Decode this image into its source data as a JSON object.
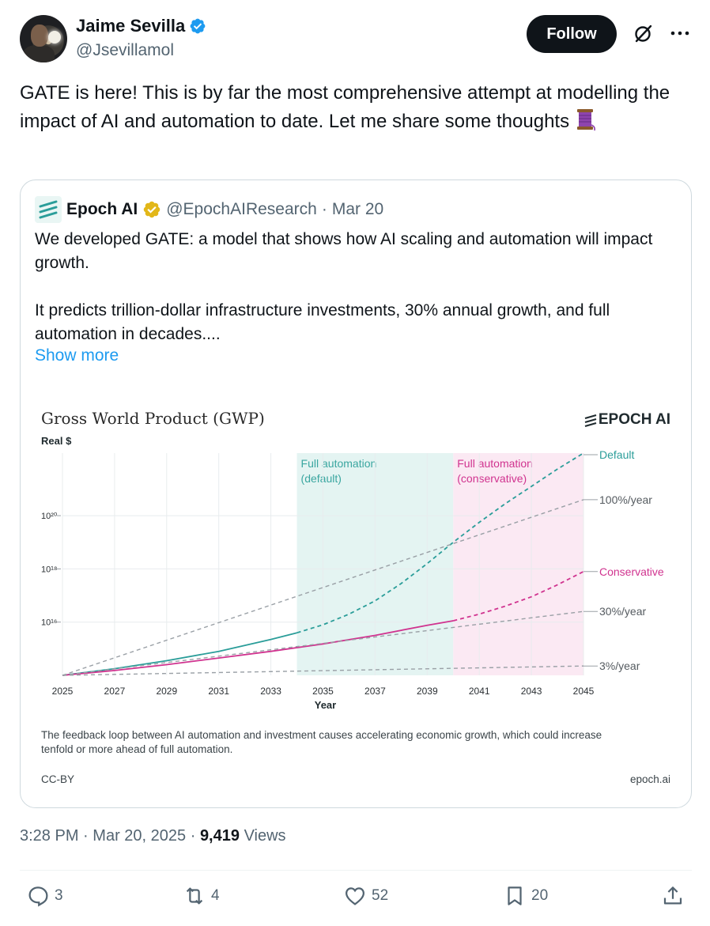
{
  "author": {
    "name": "Jaime Sevilla",
    "handle": "@Jsevillamol"
  },
  "follow_label": "Follow",
  "tweet_text": "GATE is here! This is by far the most comprehensive attempt at modelling the impact of AI and automation to date. Let me share some thoughts",
  "quoted": {
    "name": "Epoch AI",
    "handle": "@EpochAIResearch",
    "separator": "·",
    "date": "Mar 20",
    "paragraph1": "We developed GATE: a model that shows how AI scaling and automation will impact growth.",
    "paragraph2": "It predicts trillion-dollar infrastructure investments, 30% annual growth, and full automation in decades....",
    "show_more": "Show more"
  },
  "chart_data": {
    "type": "line",
    "title": "Gross World Product (GWP)",
    "brand": "EPOCH AI",
    "ylabel": "Real $",
    "xlabel": "Year",
    "x_ticks": [
      "2025",
      "2027",
      "2029",
      "2031",
      "2033",
      "2035",
      "2037",
      "2039",
      "2041",
      "2043",
      "2045"
    ],
    "y_scale": "log",
    "y_ticks": [
      "10²⁰",
      "10¹⁸",
      "10¹⁶"
    ],
    "regions": [
      {
        "label_line1": "Full automation",
        "label_line2": "(default)",
        "x_start": 2034,
        "x_end": 2040,
        "color": "#e4f4f2"
      },
      {
        "label_line1": "Full automation",
        "label_line2": "(conservative)",
        "x_start": 2040,
        "x_end": 2045,
        "color": "#fbe9f3"
      }
    ],
    "series": [
      {
        "name": "Default",
        "color": "#2a9d99",
        "points": [
          [
            2025,
            14.0
          ],
          [
            2027,
            14.25
          ],
          [
            2029,
            14.55
          ],
          [
            2031,
            14.9
          ],
          [
            2033,
            15.35
          ],
          [
            2034,
            15.6
          ],
          [
            2035,
            15.9
          ],
          [
            2036,
            16.3
          ],
          [
            2037,
            16.8
          ],
          [
            2038,
            17.45
          ],
          [
            2039,
            18.2
          ],
          [
            2040,
            19.0
          ],
          [
            2041,
            19.75
          ],
          [
            2042,
            20.45
          ],
          [
            2043,
            21.1
          ],
          [
            2044,
            21.75
          ],
          [
            2045,
            22.35
          ]
        ]
      },
      {
        "name": "Conservative",
        "color": "#d0338f",
        "points": [
          [
            2025,
            14.0
          ],
          [
            2027,
            14.18
          ],
          [
            2029,
            14.4
          ],
          [
            2031,
            14.65
          ],
          [
            2033,
            14.9
          ],
          [
            2035,
            15.18
          ],
          [
            2037,
            15.5
          ],
          [
            2039,
            15.88
          ],
          [
            2040,
            16.05
          ],
          [
            2041,
            16.3
          ],
          [
            2042,
            16.6
          ],
          [
            2043,
            16.95
          ],
          [
            2044,
            17.4
          ],
          [
            2045,
            17.9
          ]
        ]
      },
      {
        "name": "100%/year",
        "color": "#9aa0a6",
        "points": [
          [
            2025,
            14.0
          ],
          [
            2045,
            20.6
          ]
        ]
      },
      {
        "name": "30%/year",
        "color": "#9aa0a6",
        "points": [
          [
            2025,
            14.0
          ],
          [
            2045,
            16.4
          ]
        ]
      },
      {
        "name": "3%/year",
        "color": "#9aa0a6",
        "points": [
          [
            2025,
            14.0
          ],
          [
            2045,
            14.35
          ]
        ]
      }
    ],
    "caption_line1": "The feedback loop between AI automation and investment causes accelerating economic growth, which could increase",
    "caption_line2": "tenfold or more ahead of full automation.",
    "license": "CC-BY",
    "source": "epoch.ai"
  },
  "meta": {
    "time": "3:28 PM",
    "dot": "·",
    "date": "Mar 20, 2025",
    "views_count": "9,419",
    "views_label": "Views"
  },
  "actions": {
    "replies": "3",
    "reposts": "4",
    "likes": "52",
    "bookmarks": "20"
  },
  "colors": {
    "accent": "#1d9bf0",
    "verified": "#1d9bf0",
    "gold": "#e2b719"
  }
}
